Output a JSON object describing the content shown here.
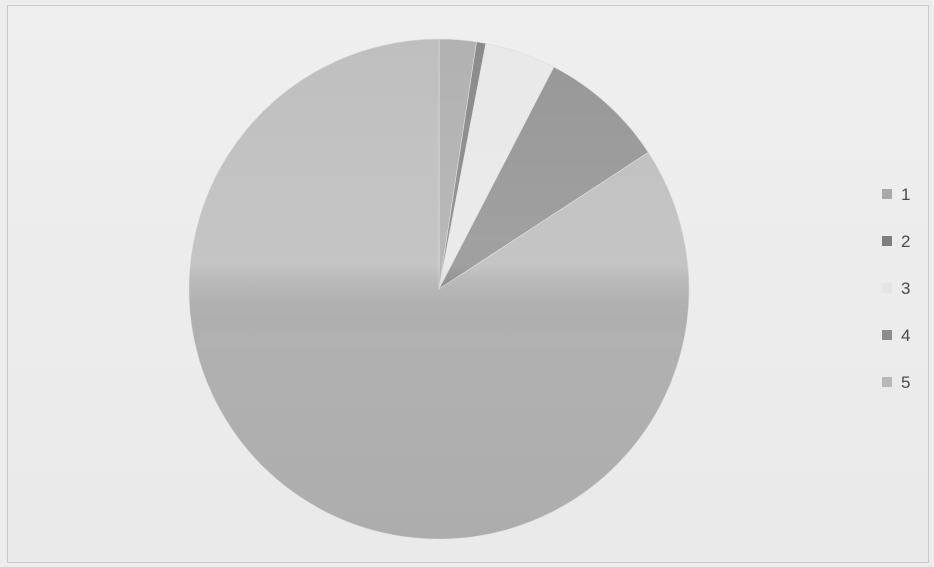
{
  "chart_data": {
    "type": "pie",
    "title": "",
    "slices": [
      {
        "label": "1",
        "value": 2.4,
        "color": "#a9a9a9"
      },
      {
        "label": "2",
        "value": 0.6,
        "color": "#7e7e7e"
      },
      {
        "label": "3",
        "value": 4.6,
        "color": "#e6e6e6"
      },
      {
        "label": "4",
        "value": 8.2,
        "color": "#8c8c8c"
      },
      {
        "label": "5",
        "value": 84.2,
        "color": "#b8b8b8"
      }
    ],
    "legend_position": "right",
    "start_angle_deg": 0,
    "direction": "clockwise"
  }
}
